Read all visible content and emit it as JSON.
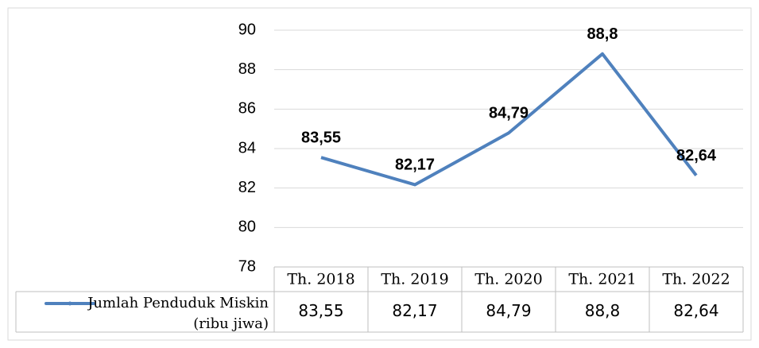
{
  "chart_data": {
    "type": "line",
    "categories": [
      "Th. 2018",
      "Th. 2019",
      "Th. 2020",
      "Th. 2021",
      "Th. 2022"
    ],
    "series": [
      {
        "name": "Jumlah Penduduk Miskin (ribu jiwa)",
        "color": "#4f81bd",
        "values": [
          83.55,
          82.17,
          84.79,
          88.8,
          82.64
        ],
        "value_labels": [
          "83,55",
          "82,17",
          "84,79",
          "88,8",
          "82,64"
        ]
      }
    ],
    "ylim": [
      78,
      90
    ],
    "yticks": [
      78,
      80,
      82,
      84,
      86,
      88,
      90
    ],
    "grid": true
  }
}
